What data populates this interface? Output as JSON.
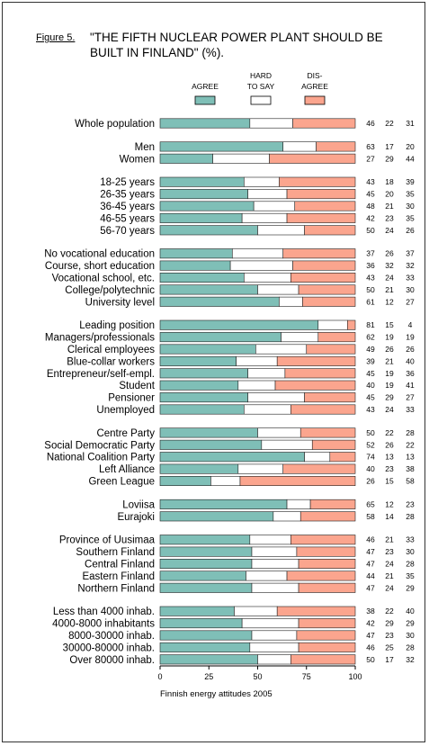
{
  "figure_label": "Figure 5.",
  "title_line1": "\"THE FIFTH NUCLEAR POWER PLANT SHOULD BE",
  "title_line2": "BUILT IN FINLAND\" (%).",
  "colors": {
    "agree": "#7fbfb7",
    "hard_to_say": "#ffffff",
    "disagree": "#fba58e"
  },
  "chart_data": {
    "type": "bar",
    "orientation": "horizontal",
    "stacked": true,
    "title": "\"THE FIFTH NUCLEAR POWER PLANT SHOULD BE BUILT IN FINLAND\" (%).",
    "xlabel": "Finnish energy attitudes 2005",
    "xlim": [
      0,
      100
    ],
    "xticks": [
      0,
      25,
      50,
      75,
      100
    ],
    "legend": [
      "AGREE",
      "HARD TO SAY",
      "DIS-AGREE"
    ],
    "legend_placement": "top",
    "groups": [
      {
        "rows": [
          {
            "label": "Whole population",
            "values": [
              46,
              22,
              31
            ]
          }
        ]
      },
      {
        "rows": [
          {
            "label": "Men",
            "values": [
              63,
              17,
              20
            ]
          },
          {
            "label": "Women",
            "values": [
              27,
              29,
              44
            ]
          }
        ]
      },
      {
        "rows": [
          {
            "label": "18-25 years",
            "values": [
              43,
              18,
              39
            ]
          },
          {
            "label": "26-35 years",
            "values": [
              45,
              20,
              35
            ]
          },
          {
            "label": "36-45 years",
            "values": [
              48,
              21,
              30
            ]
          },
          {
            "label": "46-55 years",
            "values": [
              42,
              23,
              35
            ]
          },
          {
            "label": "56-70 years",
            "values": [
              50,
              24,
              26
            ]
          }
        ]
      },
      {
        "rows": [
          {
            "label": "No vocational education",
            "values": [
              37,
              26,
              37
            ]
          },
          {
            "label": "Course, short education",
            "values": [
              36,
              32,
              32
            ]
          },
          {
            "label": "Vocational school, etc.",
            "values": [
              43,
              24,
              33
            ]
          },
          {
            "label": "College/polytechnic",
            "values": [
              50,
              21,
              30
            ]
          },
          {
            "label": "University level",
            "values": [
              61,
              12,
              27
            ]
          }
        ]
      },
      {
        "rows": [
          {
            "label": "Leading position",
            "values": [
              81,
              15,
              4
            ]
          },
          {
            "label": "Managers/professionals",
            "values": [
              62,
              19,
              19
            ]
          },
          {
            "label": "Clerical employees",
            "values": [
              49,
              26,
              26
            ]
          },
          {
            "label": "Blue-collar workers",
            "values": [
              39,
              21,
              40
            ]
          },
          {
            "label": "Entrepreneur/self-empl.",
            "values": [
              45,
              19,
              36
            ]
          },
          {
            "label": "Student",
            "values": [
              40,
              19,
              41
            ]
          },
          {
            "label": "Pensioner",
            "values": [
              45,
              29,
              27
            ]
          },
          {
            "label": "Unemployed",
            "values": [
              43,
              24,
              33
            ]
          }
        ]
      },
      {
        "rows": [
          {
            "label": "Centre Party",
            "values": [
              50,
              22,
              28
            ]
          },
          {
            "label": "Social Democratic Party",
            "values": [
              52,
              26,
              22
            ]
          },
          {
            "label": "National Coalition Party",
            "values": [
              74,
              13,
              13
            ]
          },
          {
            "label": "Left Alliance",
            "values": [
              40,
              23,
              38
            ]
          },
          {
            "label": "Green League",
            "values": [
              26,
              15,
              58
            ]
          }
        ]
      },
      {
        "rows": [
          {
            "label": "Loviisa",
            "values": [
              65,
              12,
              23
            ]
          },
          {
            "label": "Eurajoki",
            "values": [
              58,
              14,
              28
            ]
          }
        ]
      },
      {
        "rows": [
          {
            "label": "Province of Uusimaa",
            "values": [
              46,
              21,
              33
            ]
          },
          {
            "label": "Southern Finland",
            "values": [
              47,
              23,
              30
            ]
          },
          {
            "label": "Central Finland",
            "values": [
              47,
              24,
              28
            ]
          },
          {
            "label": "Eastern Finland",
            "values": [
              44,
              21,
              35
            ]
          },
          {
            "label": "Northern Finland",
            "values": [
              47,
              24,
              29
            ]
          }
        ]
      },
      {
        "rows": [
          {
            "label": "Less than 4000 inhab.",
            "values": [
              38,
              22,
              40
            ]
          },
          {
            "label": "4000-8000 inhabitants",
            "values": [
              42,
              29,
              29
            ]
          },
          {
            "label": "8000-30000 inhab.",
            "values": [
              47,
              23,
              30
            ]
          },
          {
            "label": "30000-80000 inhab.",
            "values": [
              46,
              25,
              28
            ]
          },
          {
            "label": "Over 80000 inhab.",
            "values": [
              50,
              17,
              32
            ]
          }
        ]
      }
    ]
  }
}
